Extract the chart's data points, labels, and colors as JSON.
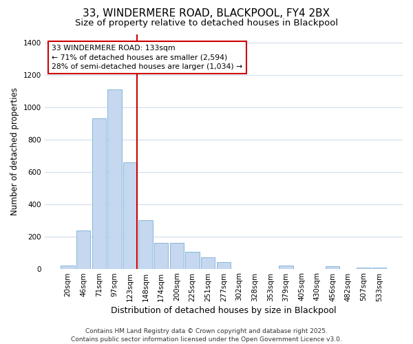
{
  "title": "33, WINDERMERE ROAD, BLACKPOOL, FY4 2BX",
  "subtitle": "Size of property relative to detached houses in Blackpool",
  "xlabel": "Distribution of detached houses by size in Blackpool",
  "ylabel": "Number of detached properties",
  "categories": [
    "20sqm",
    "46sqm",
    "71sqm",
    "97sqm",
    "123sqm",
    "148sqm",
    "174sqm",
    "200sqm",
    "225sqm",
    "251sqm",
    "277sqm",
    "302sqm",
    "328sqm",
    "353sqm",
    "379sqm",
    "405sqm",
    "430sqm",
    "456sqm",
    "482sqm",
    "507sqm",
    "533sqm"
  ],
  "values": [
    18,
    235,
    930,
    1110,
    660,
    300,
    160,
    160,
    105,
    70,
    40,
    0,
    0,
    0,
    20,
    0,
    0,
    15,
    0,
    5,
    5
  ],
  "bar_color": "#c5d8f0",
  "bar_edge_color": "#7aadd4",
  "background_color": "#ffffff",
  "grid_color": "#d0dcee",
  "vline_color": "#cc0000",
  "annotation_text": "33 WINDERMERE ROAD: 133sqm\n← 71% of detached houses are smaller (2,594)\n28% of semi-detached houses are larger (1,034) →",
  "annotation_box_color": "#cc0000",
  "footnote": "Contains HM Land Registry data © Crown copyright and database right 2025.\nContains public sector information licensed under the Open Government Licence v3.0.",
  "ylim": [
    0,
    1450
  ],
  "yticks": [
    0,
    200,
    400,
    600,
    800,
    1000,
    1200,
    1400
  ],
  "title_fontsize": 11,
  "subtitle_fontsize": 9.5,
  "xlabel_fontsize": 9,
  "ylabel_fontsize": 8.5,
  "tick_fontsize": 7.5,
  "footnote_fontsize": 6.5
}
